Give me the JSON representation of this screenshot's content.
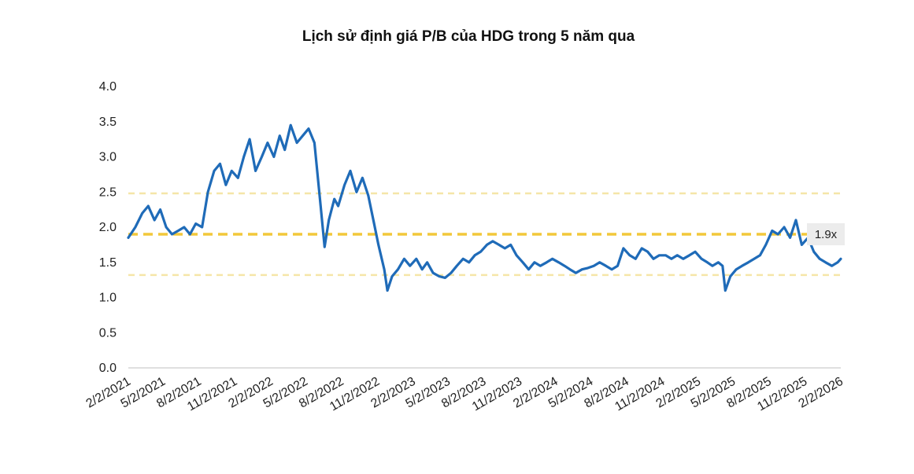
{
  "chart_data": {
    "type": "line",
    "title": "Lịch sử định giá P/B của HDG trong 5 năm qua",
    "ylim": [
      0,
      4
    ],
    "y_ticks": [
      "0.0",
      "0.5",
      "1.0",
      "1.5",
      "2.0",
      "2.5",
      "3.0",
      "3.5",
      "4.0"
    ],
    "x_range": [
      "2/2/2021",
      "2/2/2026"
    ],
    "x_ticks": [
      "2/2/2021",
      "5/2/2021",
      "8/2/2021",
      "11/2/2021",
      "2/2/2022",
      "5/2/2022",
      "8/2/2022",
      "11/2/2022",
      "2/2/2023",
      "5/2/2023",
      "8/2/2023",
      "11/2/2023",
      "2/2/2024",
      "5/2/2024",
      "8/2/2024",
      "11/2/2024",
      "2/2/2025",
      "5/2/2025",
      "8/2/2025",
      "11/2/2025",
      "2/2/2026"
    ],
    "grid": false,
    "series": [
      {
        "color": "#1f6bb8",
        "points": [
          [
            "2021-02-02",
            1.85
          ],
          [
            "2021-02-20",
            2.0
          ],
          [
            "2021-03-10",
            2.2
          ],
          [
            "2021-03-25",
            2.3
          ],
          [
            "2021-04-10",
            2.1
          ],
          [
            "2021-04-25",
            2.25
          ],
          [
            "2021-05-10",
            2.0
          ],
          [
            "2021-05-25",
            1.9
          ],
          [
            "2021-06-10",
            1.95
          ],
          [
            "2021-06-25",
            2.0
          ],
          [
            "2021-07-10",
            1.9
          ],
          [
            "2021-07-25",
            2.05
          ],
          [
            "2021-08-10",
            2.0
          ],
          [
            "2021-08-25",
            2.5
          ],
          [
            "2021-09-10",
            2.8
          ],
          [
            "2021-09-25",
            2.9
          ],
          [
            "2021-10-10",
            2.6
          ],
          [
            "2021-10-25",
            2.8
          ],
          [
            "2021-11-10",
            2.7
          ],
          [
            "2021-11-25",
            3.0
          ],
          [
            "2021-12-10",
            3.25
          ],
          [
            "2021-12-25",
            2.8
          ],
          [
            "2022-01-10",
            3.0
          ],
          [
            "2022-01-25",
            3.2
          ],
          [
            "2022-02-10",
            3.0
          ],
          [
            "2022-02-25",
            3.3
          ],
          [
            "2022-03-10",
            3.1
          ],
          [
            "2022-03-25",
            3.45
          ],
          [
            "2022-04-10",
            3.2
          ],
          [
            "2022-04-25",
            3.3
          ],
          [
            "2022-05-10",
            3.4
          ],
          [
            "2022-05-25",
            3.2
          ],
          [
            "2022-06-10",
            2.3
          ],
          [
            "2022-06-20",
            1.72
          ],
          [
            "2022-07-01",
            2.1
          ],
          [
            "2022-07-15",
            2.4
          ],
          [
            "2022-07-25",
            2.3
          ],
          [
            "2022-08-10",
            2.6
          ],
          [
            "2022-08-25",
            2.8
          ],
          [
            "2022-09-10",
            2.5
          ],
          [
            "2022-09-25",
            2.7
          ],
          [
            "2022-10-10",
            2.45
          ],
          [
            "2022-10-25",
            2.05
          ],
          [
            "2022-11-05",
            1.75
          ],
          [
            "2022-11-20",
            1.4
          ],
          [
            "2022-11-28",
            1.1
          ],
          [
            "2022-12-10",
            1.3
          ],
          [
            "2022-12-25",
            1.4
          ],
          [
            "2023-01-10",
            1.55
          ],
          [
            "2023-01-25",
            1.45
          ],
          [
            "2023-02-10",
            1.55
          ],
          [
            "2023-02-25",
            1.4
          ],
          [
            "2023-03-10",
            1.5
          ],
          [
            "2023-03-25",
            1.35
          ],
          [
            "2023-04-10",
            1.3
          ],
          [
            "2023-04-25",
            1.28
          ],
          [
            "2023-05-10",
            1.35
          ],
          [
            "2023-05-25",
            1.45
          ],
          [
            "2023-06-10",
            1.55
          ],
          [
            "2023-06-25",
            1.5
          ],
          [
            "2023-07-10",
            1.6
          ],
          [
            "2023-07-25",
            1.65
          ],
          [
            "2023-08-10",
            1.75
          ],
          [
            "2023-08-25",
            1.8
          ],
          [
            "2023-09-10",
            1.75
          ],
          [
            "2023-09-25",
            1.7
          ],
          [
            "2023-10-10",
            1.75
          ],
          [
            "2023-10-25",
            1.6
          ],
          [
            "2023-11-10",
            1.5
          ],
          [
            "2023-11-25",
            1.4
          ],
          [
            "2023-12-10",
            1.5
          ],
          [
            "2023-12-25",
            1.45
          ],
          [
            "2024-01-10",
            1.5
          ],
          [
            "2024-01-25",
            1.55
          ],
          [
            "2024-02-10",
            1.5
          ],
          [
            "2024-02-25",
            1.45
          ],
          [
            "2024-03-10",
            1.4
          ],
          [
            "2024-03-25",
            1.35
          ],
          [
            "2024-04-10",
            1.4
          ],
          [
            "2024-04-25",
            1.42
          ],
          [
            "2024-05-10",
            1.45
          ],
          [
            "2024-05-25",
            1.5
          ],
          [
            "2024-06-10",
            1.45
          ],
          [
            "2024-06-25",
            1.4
          ],
          [
            "2024-07-10",
            1.45
          ],
          [
            "2024-07-25",
            1.7
          ],
          [
            "2024-08-10",
            1.6
          ],
          [
            "2024-08-25",
            1.55
          ],
          [
            "2024-09-10",
            1.7
          ],
          [
            "2024-09-25",
            1.65
          ],
          [
            "2024-10-10",
            1.55
          ],
          [
            "2024-10-25",
            1.6
          ],
          [
            "2024-11-10",
            1.6
          ],
          [
            "2024-11-25",
            1.55
          ],
          [
            "2024-12-10",
            1.6
          ],
          [
            "2024-12-25",
            1.55
          ],
          [
            "2025-01-10",
            1.6
          ],
          [
            "2025-01-25",
            1.65
          ],
          [
            "2025-02-10",
            1.55
          ],
          [
            "2025-02-25",
            1.5
          ],
          [
            "2025-03-10",
            1.45
          ],
          [
            "2025-03-25",
            1.5
          ],
          [
            "2025-04-05",
            1.45
          ],
          [
            "2025-04-12",
            1.1
          ],
          [
            "2025-04-25",
            1.3
          ],
          [
            "2025-05-10",
            1.4
          ],
          [
            "2025-05-25",
            1.45
          ],
          [
            "2025-06-10",
            1.5
          ],
          [
            "2025-06-25",
            1.55
          ],
          [
            "2025-07-10",
            1.6
          ],
          [
            "2025-07-25",
            1.75
          ],
          [
            "2025-08-10",
            1.95
          ],
          [
            "2025-08-25",
            1.9
          ],
          [
            "2025-09-10",
            2.0
          ],
          [
            "2025-09-25",
            1.85
          ],
          [
            "2025-10-10",
            2.1
          ],
          [
            "2025-10-25",
            1.75
          ],
          [
            "2025-11-10",
            1.85
          ],
          [
            "2025-11-25",
            1.65
          ],
          [
            "2025-12-10",
            1.55
          ],
          [
            "2025-12-25",
            1.5
          ],
          [
            "2026-01-10",
            1.45
          ],
          [
            "2026-01-25",
            1.5
          ],
          [
            "2026-02-02",
            1.55
          ]
        ]
      }
    ],
    "reference_lines": [
      {
        "value": 1.9,
        "style": "dashed",
        "color": "#f2c83a",
        "label": "1.9x"
      },
      {
        "value": 2.48,
        "style": "dashed",
        "color": "#f5e6a8"
      },
      {
        "value": 1.32,
        "style": "dashed",
        "color": "#f5e6a8"
      }
    ]
  }
}
